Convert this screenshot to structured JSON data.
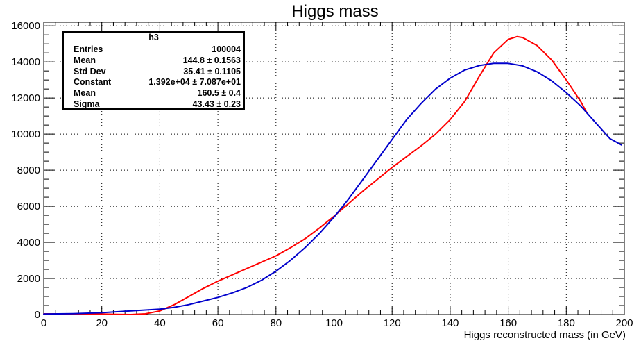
{
  "chart_data": {
    "type": "line",
    "title": "Higgs mass",
    "xlabel": "Higgs reconstructed mass (in GeV)",
    "ylabel": "",
    "xlim": [
      0,
      200
    ],
    "ylim": [
      0,
      16200
    ],
    "x_ticks": [
      0,
      20,
      40,
      60,
      80,
      100,
      120,
      140,
      160,
      180,
      200
    ],
    "y_ticks": [
      0,
      2000,
      4000,
      6000,
      8000,
      10000,
      12000,
      14000,
      16000
    ],
    "grid": true,
    "series": [
      {
        "color": "#ff0000",
        "x": [
          0,
          10,
          15,
          20,
          25,
          30,
          35,
          40,
          45,
          50,
          55,
          60,
          65,
          70,
          75,
          80,
          85,
          90,
          95,
          100,
          105,
          110,
          115,
          120,
          125,
          130,
          135,
          140,
          145,
          150,
          155,
          160,
          163,
          165,
          170,
          175,
          180,
          185,
          187
        ],
        "y": [
          40,
          40,
          40,
          30,
          10,
          0,
          40,
          200,
          550,
          1000,
          1450,
          1850,
          2200,
          2550,
          2900,
          3250,
          3700,
          4200,
          4800,
          5450,
          6150,
          6850,
          7500,
          8150,
          8750,
          9350,
          10000,
          10800,
          11800,
          13200,
          14500,
          15250,
          15400,
          15350,
          14900,
          14100,
          13000,
          11800,
          11200
        ]
      },
      {
        "color": "#0000cc",
        "x": [
          0,
          10,
          20,
          30,
          40,
          45,
          50,
          55,
          60,
          65,
          70,
          75,
          80,
          85,
          90,
          95,
          100,
          105,
          110,
          115,
          120,
          125,
          130,
          135,
          140,
          145,
          150,
          155,
          160,
          165,
          170,
          175,
          180,
          185,
          190,
          195,
          199
        ],
        "y": [
          30,
          50,
          100,
          200,
          300,
          400,
          550,
          750,
          950,
          1200,
          1500,
          1900,
          2400,
          3000,
          3700,
          4500,
          5400,
          6400,
          7500,
          8600,
          9700,
          10800,
          11700,
          12500,
          13100,
          13550,
          13800,
          13920,
          13920,
          13780,
          13450,
          12950,
          12300,
          11550,
          10650,
          9750,
          9400
        ]
      }
    ]
  },
  "stats_box": {
    "title": "h3",
    "rows": [
      {
        "label": "Entries",
        "value": "100004"
      },
      {
        "label": "Mean",
        "value": "144.8 ± 0.1563"
      },
      {
        "label": "Std Dev",
        "value": "35.41 ± 0.1105"
      },
      {
        "label": "Constant",
        "value": "1.392e+04 ± 7.087e+01"
      },
      {
        "label": "Mean",
        "value": "160.5 ± 0.4"
      },
      {
        "label": "Sigma",
        "value": "43.43 ± 0.23"
      }
    ]
  }
}
